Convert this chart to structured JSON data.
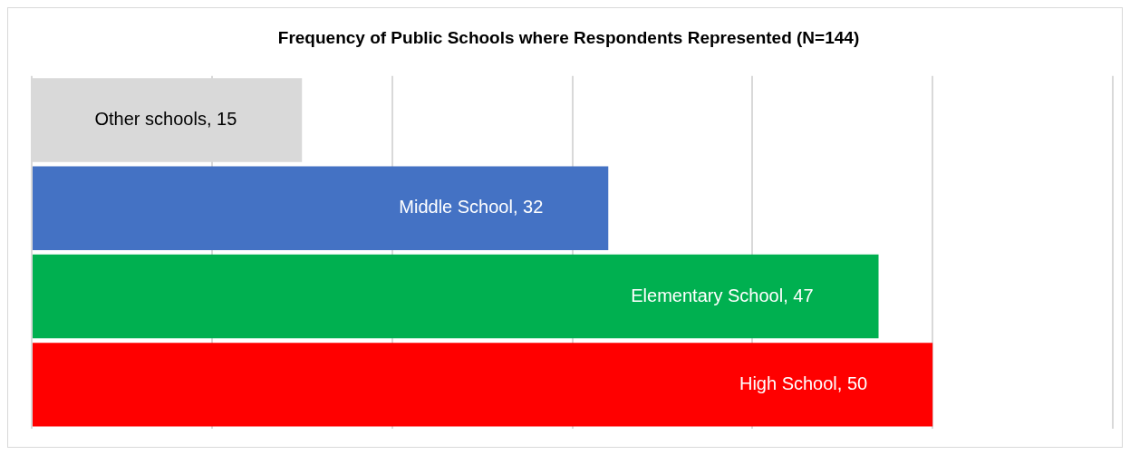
{
  "chart_data": {
    "type": "bar",
    "orientation": "horizontal",
    "title": "Frequency of Public Schools where Respondents Represented (N=144)",
    "categories": [
      null,
      null,
      null,
      null
    ],
    "values": [
      15,
      32,
      47,
      50
    ],
    "value_labels": [
      "Other schools, 15",
      "Middle School, 32",
      "Elementary School, 47",
      "High School, 50"
    ],
    "colors": [
      "#d9d9d9",
      "#4472c4",
      "#00b050",
      "#ff0000"
    ],
    "tick_labels": false,
    "grid": "x",
    "legend": false
  }
}
